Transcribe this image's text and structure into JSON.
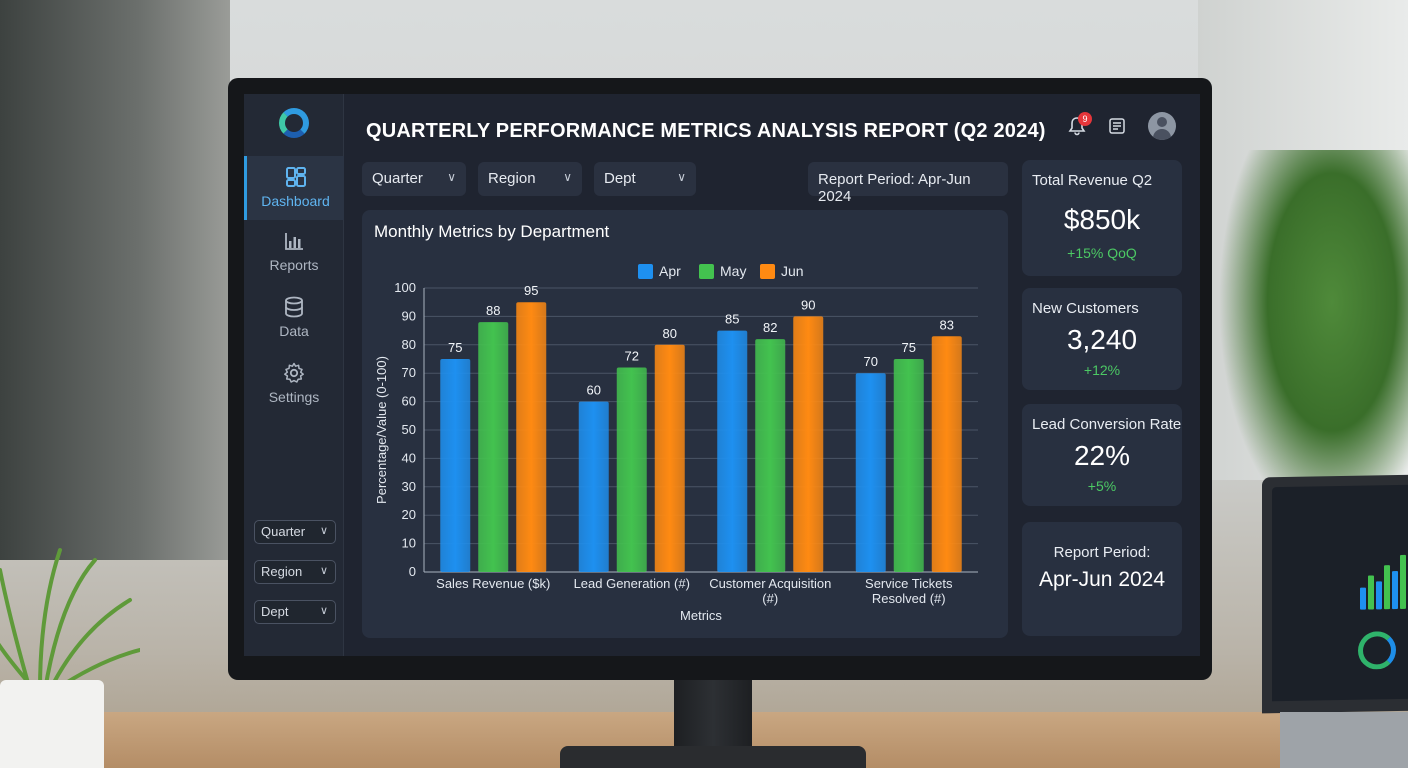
{
  "app": {
    "title": "QUARTERLY PERFORMANCE METRICS ANALYSIS REPORT (Q2 2024)",
    "notification_count": "9"
  },
  "sidebar": {
    "items": [
      {
        "label": "Dashboard",
        "icon": "dashboard-icon",
        "active": true
      },
      {
        "label": "Reports",
        "icon": "bar-chart-icon",
        "active": false
      },
      {
        "label": "Data",
        "icon": "database-icon",
        "active": false
      },
      {
        "label": "Settings",
        "icon": "gear-icon",
        "active": false
      }
    ],
    "filters": [
      {
        "label": "Quarter"
      },
      {
        "label": "Region"
      },
      {
        "label": "Dept"
      }
    ]
  },
  "toolbar": {
    "filters": [
      {
        "label": "Quarter"
      },
      {
        "label": "Region"
      },
      {
        "label": "Dept"
      }
    ],
    "period": "Report Period: Apr-Jun 2024"
  },
  "chart_card": {
    "title": "Monthly Metrics by Department"
  },
  "kpis": {
    "revenue": {
      "label": "Total Revenue Q2",
      "value": "$850k",
      "change": "+15% QoQ"
    },
    "customers": {
      "label": "New Customers",
      "value": "3,240",
      "change": "+12%"
    },
    "conversion": {
      "label": "Lead Conversion Rate",
      "value": "22%",
      "change": "+5%"
    },
    "period": {
      "label": "Report Period:",
      "value": "Apr-Jun 2024"
    }
  },
  "colors": {
    "accent": "#2f9be0",
    "positive": "#4cc964",
    "apr": "#1e90f0",
    "may": "#43c24f",
    "jun": "#ff8a12"
  },
  "chart_data": {
    "type": "bar",
    "title": "Monthly Metrics by Department",
    "xlabel": "Metrics",
    "ylabel": "Percentage/Value (0-100)",
    "ylim": [
      0,
      100
    ],
    "yticks": [
      0,
      10,
      20,
      30,
      40,
      50,
      60,
      70,
      80,
      90,
      100
    ],
    "grid": true,
    "legend_position": "top-center",
    "categories": [
      "Sales Revenue ($k)",
      "Lead Generation (#)",
      "Customer Acquisition (#)",
      "Service Tickets Resolved (#)"
    ],
    "series": [
      {
        "name": "Apr",
        "color": "#1e90f0",
        "values": [
          75,
          60,
          85,
          70
        ]
      },
      {
        "name": "May",
        "color": "#43c24f",
        "values": [
          88,
          72,
          82,
          75
        ]
      },
      {
        "name": "Jun",
        "color": "#ff8a12",
        "values": [
          95,
          80,
          90,
          83
        ]
      }
    ]
  }
}
